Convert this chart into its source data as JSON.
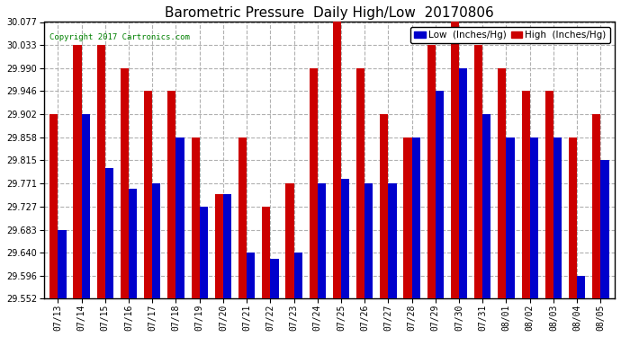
{
  "title": "Barometric Pressure  Daily High/Low  20170806",
  "copyright": "Copyright 2017 Cartronics.com",
  "legend_low": "Low  (Inches/Hg)",
  "legend_high": "High  (Inches/Hg)",
  "dates": [
    "07/13",
    "07/14",
    "07/15",
    "07/16",
    "07/17",
    "07/18",
    "07/19",
    "07/20",
    "07/21",
    "07/22",
    "07/23",
    "07/24",
    "07/25",
    "07/26",
    "07/27",
    "07/28",
    "07/29",
    "07/30",
    "07/31",
    "08/01",
    "08/02",
    "08/03",
    "08/04",
    "08/05"
  ],
  "low": [
    29.683,
    29.902,
    29.8,
    29.76,
    29.771,
    29.858,
    29.727,
    29.75,
    29.64,
    29.628,
    29.64,
    29.771,
    29.78,
    29.771,
    29.771,
    29.858,
    29.946,
    29.99,
    29.902,
    29.858,
    29.858,
    29.858,
    29.596,
    29.815
  ],
  "high": [
    29.902,
    30.033,
    30.033,
    29.99,
    29.946,
    29.946,
    29.858,
    29.75,
    29.858,
    29.727,
    29.771,
    29.99,
    30.077,
    29.99,
    29.902,
    29.858,
    30.033,
    30.077,
    30.033,
    29.99,
    29.946,
    29.946,
    29.858,
    29.902
  ],
  "ylim_min": 29.552,
  "ylim_max": 30.077,
  "yticks": [
    29.552,
    29.596,
    29.64,
    29.683,
    29.727,
    29.771,
    29.815,
    29.858,
    29.902,
    29.946,
    29.99,
    30.033,
    30.077
  ],
  "bar_color_low": "#0000cc",
  "bar_color_high": "#cc0000",
  "background_color": "#ffffff",
  "grid_color": "#b0b0b0",
  "title_fontsize": 11,
  "tick_fontsize": 7,
  "legend_fontsize": 7.5,
  "bar_width": 0.35
}
